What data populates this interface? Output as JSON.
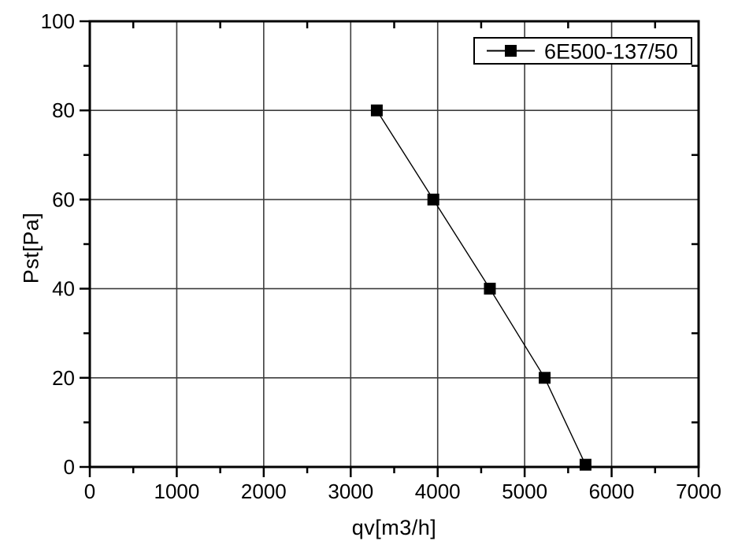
{
  "figure": {
    "background": "#ffffff"
  },
  "style": {
    "axis_color": "#000000",
    "grid_color": "#3d3d3d",
    "text_color": "#000000",
    "marker_color": "#000000",
    "line_color": "#000000",
    "legend_border_color": "#000000",
    "legend_fill": "#ffffff"
  },
  "chart_data": {
    "type": "line",
    "title": "",
    "xlabel": "qv[m3/h]",
    "ylabel": "Pst[Pa]",
    "xlim": [
      0,
      7000
    ],
    "ylim": [
      0,
      100
    ],
    "xticks": [
      0,
      1000,
      2000,
      3000,
      4000,
      5000,
      6000,
      7000
    ],
    "yticks": [
      0,
      20,
      40,
      60,
      80,
      100
    ],
    "x_minor_step": 500,
    "y_minor_step": 10,
    "grid": true,
    "legend": {
      "position": "top-right",
      "entries": [
        "6E500-137/50"
      ]
    },
    "series": [
      {
        "name": "6E500-137/50",
        "marker": "filled-square",
        "line_style": "solid",
        "points": [
          [
            3300,
            80
          ],
          [
            3950,
            60
          ],
          [
            4600,
            40
          ],
          [
            5230,
            20
          ],
          [
            5700,
            0.5
          ]
        ]
      }
    ]
  }
}
